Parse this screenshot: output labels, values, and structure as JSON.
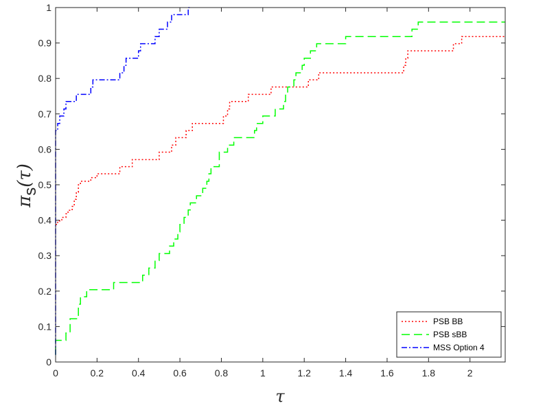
{
  "chart_data": {
    "type": "line",
    "title": "",
    "xlabel": "τ",
    "ylabel_main": "π",
    "ylabel_sub": "s",
    "ylabel_arg": "(τ)",
    "xlim": [
      0,
      2.17
    ],
    "ylim": [
      0,
      1
    ],
    "xticks": [
      0,
      0.2,
      0.4,
      0.6,
      0.8,
      1,
      1.2,
      1.4,
      1.6,
      1.8,
      2
    ],
    "xtick_labels": [
      "0",
      "0.2",
      "0.4",
      "0.6",
      "0.8",
      "1",
      "1.2",
      "1.4",
      "1.6",
      "1.8",
      "2"
    ],
    "yticks": [
      0,
      0.1,
      0.2,
      0.3,
      0.4,
      0.5,
      0.6,
      0.7,
      0.8,
      0.9,
      1
    ],
    "ytick_labels": [
      "0",
      "0.1",
      "0.2",
      "0.3",
      "0.4",
      "0.5",
      "0.6",
      "0.7",
      "0.8",
      "0.9",
      "1"
    ],
    "grid": false,
    "legend_position": "bottom-right",
    "series": [
      {
        "name": "PSB BB",
        "color": "#ff0000",
        "dash": "2,3",
        "points": [
          [
            0,
            0.388
          ],
          [
            0.01,
            0.388
          ],
          [
            0.01,
            0.398
          ],
          [
            0.03,
            0.398
          ],
          [
            0.03,
            0.408
          ],
          [
            0.05,
            0.408
          ],
          [
            0.05,
            0.418
          ],
          [
            0.06,
            0.418
          ],
          [
            0.06,
            0.428
          ],
          [
            0.08,
            0.428
          ],
          [
            0.08,
            0.439
          ],
          [
            0.09,
            0.439
          ],
          [
            0.09,
            0.459
          ],
          [
            0.1,
            0.459
          ],
          [
            0.1,
            0.479
          ],
          [
            0.11,
            0.479
          ],
          [
            0.11,
            0.5
          ],
          [
            0.12,
            0.5
          ],
          [
            0.12,
            0.51
          ],
          [
            0.17,
            0.51
          ],
          [
            0.17,
            0.52
          ],
          [
            0.2,
            0.52
          ],
          [
            0.2,
            0.531
          ],
          [
            0.31,
            0.531
          ],
          [
            0.31,
            0.551
          ],
          [
            0.37,
            0.551
          ],
          [
            0.37,
            0.571
          ],
          [
            0.5,
            0.571
          ],
          [
            0.5,
            0.592
          ],
          [
            0.56,
            0.592
          ],
          [
            0.56,
            0.612
          ],
          [
            0.58,
            0.612
          ],
          [
            0.58,
            0.633
          ],
          [
            0.63,
            0.633
          ],
          [
            0.63,
            0.653
          ],
          [
            0.66,
            0.653
          ],
          [
            0.66,
            0.673
          ],
          [
            0.81,
            0.673
          ],
          [
            0.81,
            0.694
          ],
          [
            0.83,
            0.694
          ],
          [
            0.83,
            0.714
          ],
          [
            0.84,
            0.714
          ],
          [
            0.84,
            0.735
          ],
          [
            0.93,
            0.735
          ],
          [
            0.93,
            0.755
          ],
          [
            1.04,
            0.755
          ],
          [
            1.04,
            0.776
          ],
          [
            1.22,
            0.776
          ],
          [
            1.22,
            0.796
          ],
          [
            1.27,
            0.796
          ],
          [
            1.27,
            0.816
          ],
          [
            1.68,
            0.816
          ],
          [
            1.68,
            0.837
          ],
          [
            1.69,
            0.837
          ],
          [
            1.69,
            0.857
          ],
          [
            1.7,
            0.857
          ],
          [
            1.7,
            0.878
          ],
          [
            1.92,
            0.878
          ],
          [
            1.92,
            0.898
          ],
          [
            1.96,
            0.898
          ],
          [
            1.96,
            0.918
          ],
          [
            2.17,
            0.918
          ]
        ]
      },
      {
        "name": "PSB sBB",
        "color": "#00ff00",
        "dash": "12,6",
        "points": [
          [
            0,
            0.02
          ],
          [
            0,
            0.061
          ],
          [
            0.05,
            0.061
          ],
          [
            0.05,
            0.082
          ],
          [
            0.07,
            0.082
          ],
          [
            0.07,
            0.122
          ],
          [
            0.11,
            0.122
          ],
          [
            0.11,
            0.163
          ],
          [
            0.12,
            0.163
          ],
          [
            0.12,
            0.184
          ],
          [
            0.15,
            0.184
          ],
          [
            0.15,
            0.204
          ],
          [
            0.28,
            0.204
          ],
          [
            0.28,
            0.224
          ],
          [
            0.42,
            0.224
          ],
          [
            0.42,
            0.245
          ],
          [
            0.45,
            0.245
          ],
          [
            0.45,
            0.265
          ],
          [
            0.48,
            0.265
          ],
          [
            0.48,
            0.286
          ],
          [
            0.5,
            0.286
          ],
          [
            0.5,
            0.306
          ],
          [
            0.55,
            0.306
          ],
          [
            0.55,
            0.327
          ],
          [
            0.57,
            0.327
          ],
          [
            0.57,
            0.347
          ],
          [
            0.59,
            0.347
          ],
          [
            0.59,
            0.367
          ],
          [
            0.6,
            0.367
          ],
          [
            0.6,
            0.388
          ],
          [
            0.62,
            0.388
          ],
          [
            0.62,
            0.408
          ],
          [
            0.64,
            0.408
          ],
          [
            0.64,
            0.429
          ],
          [
            0.65,
            0.429
          ],
          [
            0.65,
            0.449
          ],
          [
            0.68,
            0.449
          ],
          [
            0.68,
            0.469
          ],
          [
            0.71,
            0.469
          ],
          [
            0.71,
            0.49
          ],
          [
            0.73,
            0.49
          ],
          [
            0.73,
            0.51
          ],
          [
            0.74,
            0.51
          ],
          [
            0.74,
            0.531
          ],
          [
            0.75,
            0.531
          ],
          [
            0.75,
            0.551
          ],
          [
            0.79,
            0.551
          ],
          [
            0.79,
            0.571
          ],
          [
            0.79,
            0.571
          ],
          [
            0.79,
            0.592
          ],
          [
            0.83,
            0.592
          ],
          [
            0.83,
            0.612
          ],
          [
            0.86,
            0.612
          ],
          [
            0.86,
            0.633
          ],
          [
            0.96,
            0.633
          ],
          [
            0.96,
            0.653
          ],
          [
            0.97,
            0.653
          ],
          [
            0.97,
            0.673
          ],
          [
            1.0,
            0.673
          ],
          [
            1.0,
            0.694
          ],
          [
            1.06,
            0.694
          ],
          [
            1.06,
            0.714
          ],
          [
            1.1,
            0.714
          ],
          [
            1.1,
            0.735
          ],
          [
            1.11,
            0.735
          ],
          [
            1.11,
            0.755
          ],
          [
            1.12,
            0.755
          ],
          [
            1.12,
            0.776
          ],
          [
            1.15,
            0.776
          ],
          [
            1.15,
            0.796
          ],
          [
            1.16,
            0.796
          ],
          [
            1.16,
            0.816
          ],
          [
            1.19,
            0.816
          ],
          [
            1.19,
            0.837
          ],
          [
            1.2,
            0.837
          ],
          [
            1.2,
            0.857
          ],
          [
            1.23,
            0.857
          ],
          [
            1.23,
            0.878
          ],
          [
            1.26,
            0.878
          ],
          [
            1.26,
            0.898
          ],
          [
            1.4,
            0.898
          ],
          [
            1.4,
            0.918
          ],
          [
            1.72,
            0.918
          ],
          [
            1.72,
            0.939
          ],
          [
            1.75,
            0.939
          ],
          [
            1.75,
            0.959
          ],
          [
            2.17,
            0.959
          ]
        ]
      },
      {
        "name": "MSS Option 4",
        "color": "#0000ff",
        "dash": "8,3,2,3",
        "points": [
          [
            0,
            0.02
          ],
          [
            0,
            0.653
          ],
          [
            0.01,
            0.653
          ],
          [
            0.01,
            0.673
          ],
          [
            0.02,
            0.673
          ],
          [
            0.02,
            0.694
          ],
          [
            0.04,
            0.694
          ],
          [
            0.04,
            0.714
          ],
          [
            0.05,
            0.714
          ],
          [
            0.05,
            0.735
          ],
          [
            0.1,
            0.735
          ],
          [
            0.1,
            0.755
          ],
          [
            0.17,
            0.755
          ],
          [
            0.17,
            0.776
          ],
          [
            0.18,
            0.776
          ],
          [
            0.18,
            0.796
          ],
          [
            0.31,
            0.796
          ],
          [
            0.31,
            0.816
          ],
          [
            0.33,
            0.816
          ],
          [
            0.33,
            0.837
          ],
          [
            0.34,
            0.837
          ],
          [
            0.34,
            0.857
          ],
          [
            0.4,
            0.857
          ],
          [
            0.4,
            0.878
          ],
          [
            0.41,
            0.878
          ],
          [
            0.41,
            0.898
          ],
          [
            0.48,
            0.898
          ],
          [
            0.48,
            0.918
          ],
          [
            0.5,
            0.918
          ],
          [
            0.5,
            0.939
          ],
          [
            0.54,
            0.939
          ],
          [
            0.54,
            0.959
          ],
          [
            0.56,
            0.959
          ],
          [
            0.56,
            0.98
          ],
          [
            0.64,
            0.98
          ],
          [
            0.64,
            1.0
          ],
          [
            0.65,
            1.0
          ]
        ]
      }
    ]
  }
}
